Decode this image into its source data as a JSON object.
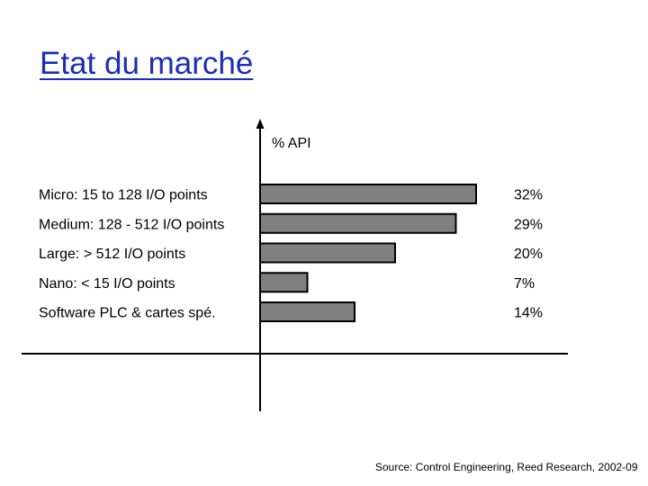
{
  "slide": {
    "title": "Etat du marché",
    "title_color": "#1a2dbb",
    "source": "Source: Control Engineering, Reed Research, 2002-09"
  },
  "chart_data": {
    "type": "bar",
    "orientation": "horizontal",
    "title": "",
    "xlabel": "% API",
    "ylabel": "",
    "categories": [
      "Micro: 15 to 128 I/O points",
      "Medium: 128 - 512 I/O points",
      "Large: > 512 I/O points",
      "Nano: < 15 I/O points",
      "Software PLC & cartes spé."
    ],
    "values": [
      32,
      29,
      20,
      7,
      14
    ],
    "value_labels": [
      "32%",
      "29%",
      "20%",
      "7%",
      "14%"
    ],
    "xlim": [
      0,
      35
    ],
    "grid": false,
    "legend": "none",
    "bar_color": "#808080",
    "bar_border_color": "#000000"
  }
}
